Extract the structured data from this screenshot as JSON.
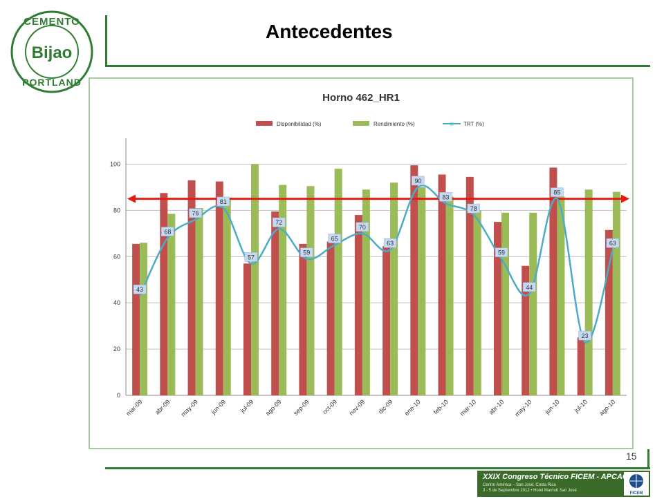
{
  "slide": {
    "title": "Antecedentes",
    "page_number": "15",
    "logo": {
      "top_text": "CEMENTO",
      "center_text": "Bijao",
      "bottom_text": "PORTLAND",
      "color": "#2e7d32"
    },
    "footer": {
      "line1": "XXIX Congreso Técnico FICEM - APCAC",
      "line2": "Centro América – San José, Costa Rica",
      "line3": "3 - 5 de Septiembre 2012 • Hotel Marriott San José",
      "right_logo_text": "FICEM"
    }
  },
  "chart_data": {
    "type": "bar",
    "title": "Horno 462_HR1",
    "categories": [
      "mar-09",
      "abr-09",
      "may-09",
      "jun-09",
      "jul-09",
      "ago-09",
      "sep-09",
      "oct-09",
      "nov-09",
      "dic-09",
      "ene-10",
      "feb-10",
      "mar-10",
      "abr-10",
      "may-10",
      "jun-10",
      "jul-10",
      "ago-10"
    ],
    "series": [
      {
        "name": "Disponibilidad (%)",
        "kind": "bar",
        "color": "#c0504d",
        "values": [
          65.5,
          87.5,
          93,
          92.5,
          57,
          79.5,
          65.5,
          66.5,
          78,
          64.5,
          99.5,
          95.5,
          94.5,
          75,
          56,
          98.5,
          25,
          71.5
        ]
      },
      {
        "name": "Rendimiento (%)",
        "kind": "bar",
        "color": "#9bbb59",
        "values": [
          66,
          78.5,
          81,
          85,
          100,
          91,
          90.5,
          98,
          89,
          92,
          90,
          86,
          80,
          79,
          79,
          86,
          89,
          88
        ]
      },
      {
        "name": "TRT (%)",
        "kind": "line",
        "color": "#4bacc6",
        "values": [
          43,
          68,
          76,
          81,
          57,
          72,
          59,
          65,
          70,
          63,
          90,
          83,
          78,
          59,
          44,
          85,
          23,
          63
        ]
      }
    ],
    "data_labels": [
      "43",
      "68",
      "76",
      "81",
      "57",
      "72",
      "59",
      "65",
      "70",
      "63",
      "90",
      "83",
      "78",
      "59",
      "44",
      "85",
      "23",
      "63"
    ],
    "y_ticks": [
      "0",
      "20",
      "40",
      "60",
      "80",
      "100"
    ],
    "ylim": [
      0,
      110
    ],
    "reference_line": {
      "value": 85,
      "color": "#e41b13"
    },
    "legend_position": "top-center",
    "grid": true
  }
}
